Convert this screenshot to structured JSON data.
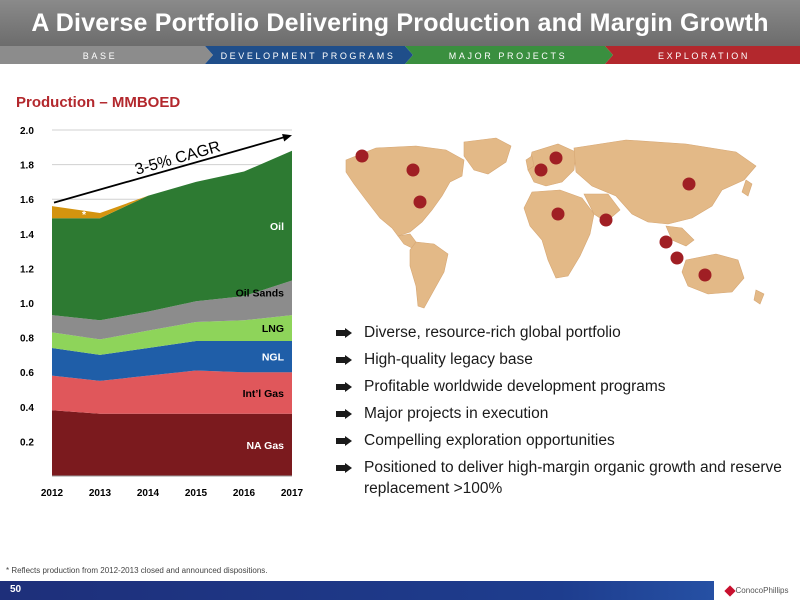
{
  "title": "A Diverse Portfolio Delivering Production and Margin Growth",
  "phases": [
    "BASE",
    "DEVELOPMENT PROGRAMS",
    "MAJOR PROJECTS",
    "EXPLORATION"
  ],
  "colors": {
    "phase_base": "#8c8c8c",
    "phase_development": "#1f4e8a",
    "phase_major": "#3a8f3f",
    "phase_exploration": "#b3282d",
    "title_red": "#b3282d",
    "land": "#e3b987",
    "marker": "#a01f24"
  },
  "bullets": [
    "Diverse, resource-rich global portfolio",
    "High-quality legacy base",
    "Profitable worldwide development programs",
    "Major projects in execution",
    "Compelling exploration opportunities",
    "Positioned to deliver high-margin organic growth and reserve replacement >100%"
  ],
  "footnote": "* Reflects production from 2012-2013 closed and announced dispositions.",
  "page_number": "50",
  "logo_text": "ConocoPhillips",
  "map_markers": 12,
  "chart_data": {
    "type": "area",
    "stacked": true,
    "title": "Production – MMBOED",
    "x": [
      "2012",
      "2013",
      "2014",
      "2015",
      "2016",
      "2017"
    ],
    "ylim": [
      0,
      2.0
    ],
    "yticks": [
      "0.2",
      "0.4",
      "0.6",
      "0.8",
      "1.0",
      "1.2",
      "1.4",
      "1.6",
      "1.8",
      "2.0"
    ],
    "grid": true,
    "series": [
      {
        "name": "NA Gas",
        "color": "#7b1a1e",
        "label_color": "#ffffff",
        "values": [
          0.38,
          0.36,
          0.36,
          0.36,
          0.36,
          0.36
        ]
      },
      {
        "name": "Int’l Gas",
        "color": "#e0575b",
        "label_color": "#000000",
        "values": [
          0.2,
          0.19,
          0.22,
          0.25,
          0.24,
          0.24
        ]
      },
      {
        "name": "NGL",
        "color": "#1f5ea8",
        "label_color": "#ffffff",
        "values": [
          0.16,
          0.15,
          0.16,
          0.17,
          0.18,
          0.18
        ]
      },
      {
        "name": "LNG",
        "color": "#8ed45a",
        "label_color": "#000000",
        "values": [
          0.09,
          0.09,
          0.1,
          0.11,
          0.12,
          0.15
        ]
      },
      {
        "name": "Oil Sands",
        "color": "#8c8c8c",
        "label_color": "#000000",
        "values": [
          0.1,
          0.11,
          0.11,
          0.12,
          0.14,
          0.2
        ]
      },
      {
        "name": "Oil",
        "color": "#2d7a32",
        "label_color": "#ffffff",
        "values": [
          0.56,
          0.59,
          0.67,
          0.69,
          0.72,
          0.75
        ]
      },
      {
        "name": "*",
        "color": "#d4940f",
        "label_color": "#ffffff",
        "values": [
          0.07,
          0.03,
          0.0,
          0.0,
          0.0,
          0.0
        ]
      }
    ],
    "annotation": "3-5% CAGR"
  }
}
